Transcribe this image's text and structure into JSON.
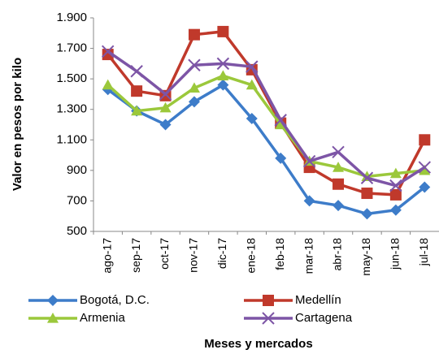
{
  "chart_data": {
    "type": "line",
    "y_label": "Valor en pesos por kilo",
    "x_label": "Meses  y mercados",
    "categories": [
      "ago-17",
      "sep-17",
      "oct-17",
      "nov-17",
      "dic-17",
      "ene-18",
      "feb-18",
      "mar-18",
      "abr-18",
      "may-18",
      "jun-18",
      "jul-18"
    ],
    "series": [
      {
        "name": "Bogotá, D.C.",
        "color": "#3d7cc9",
        "marker": "diamond",
        "values": [
          1430,
          1290,
          1200,
          1350,
          1460,
          1240,
          980,
          700,
          670,
          615,
          640,
          790
        ]
      },
      {
        "name": "Medellín",
        "color": "#c0392b",
        "marker": "square",
        "values": [
          1660,
          1420,
          1390,
          1790,
          1810,
          1560,
          1210,
          920,
          810,
          750,
          740,
          1100
        ]
      },
      {
        "name": "Armenia",
        "color": "#9bc83b",
        "marker": "triangle",
        "values": [
          1460,
          1290,
          1310,
          1440,
          1520,
          1460,
          1200,
          960,
          920,
          860,
          880,
          900
        ]
      },
      {
        "name": "Cartagena",
        "color": "#7d55a6",
        "marker": "x",
        "values": [
          1680,
          1550,
          1400,
          1590,
          1600,
          1580,
          1230,
          960,
          1020,
          850,
          800,
          920
        ]
      }
    ],
    "ylim": [
      500,
      1900
    ],
    "yticks": [
      500,
      700,
      900,
      {
        "value": 1100,
        "label": "1.100"
      },
      {
        "value": 1300,
        "label": "1.300"
      },
      {
        "value": 1500,
        "label": "1.500"
      },
      {
        "value": 1700,
        "label": "1.700"
      },
      {
        "value": 1900,
        "label": "1.900"
      }
    ],
    "grid": false,
    "legend": "bottom"
  }
}
